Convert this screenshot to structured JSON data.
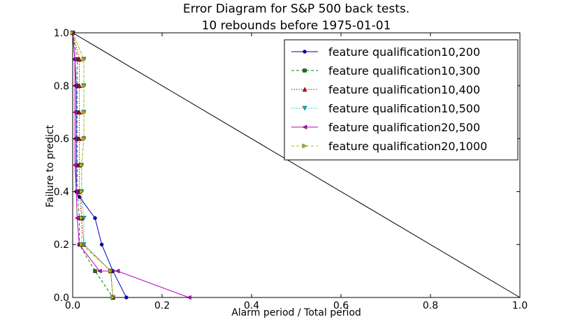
{
  "chart_data": {
    "type": "line",
    "title": "Error Diagram for S&P 500 back tests.",
    "subtitle": "10 rebounds before 1975-01-01",
    "xlabel": "Alarm period / Total period",
    "ylabel": "Failure to predict",
    "xlim": [
      0.0,
      1.0
    ],
    "ylim": [
      0.0,
      1.0
    ],
    "xticks": [
      "0.0",
      "0.2",
      "0.4",
      "0.6",
      "0.8",
      "1.0"
    ],
    "yticks": [
      "0.0",
      "0.2",
      "0.4",
      "0.6",
      "0.8",
      "1.0"
    ],
    "grid": false,
    "legend_position": "top-right",
    "reference_line": {
      "x": [
        0,
        1
      ],
      "y": [
        1,
        0
      ],
      "color": "#000000"
    },
    "series": [
      {
        "name": "feature qualification10,200",
        "color": "#0000bf",
        "dash": "solid",
        "marker": "circle",
        "x": [
          0.0,
          0.005,
          0.008,
          0.008,
          0.008,
          0.008,
          0.008,
          0.015,
          0.05,
          0.065,
          0.09,
          0.12
        ],
        "y": [
          1.0,
          0.9,
          0.8,
          0.7,
          0.6,
          0.5,
          0.4,
          0.38,
          0.3,
          0.2,
          0.1,
          0.0
        ]
      },
      {
        "name": "feature qualification10,300",
        "color": "#007f00",
        "dash": "dashed",
        "marker": "square",
        "x": [
          0.0,
          0.01,
          0.01,
          0.01,
          0.01,
          0.01,
          0.01,
          0.015,
          0.015,
          0.05,
          0.09
        ],
        "y": [
          1.0,
          0.9,
          0.8,
          0.7,
          0.6,
          0.5,
          0.4,
          0.3,
          0.2,
          0.1,
          0.0
        ]
      },
      {
        "name": "feature qualification10,400",
        "color": "#bf0000",
        "dash": "dotted",
        "marker": "triangle-up",
        "x": [
          0.0,
          0.015,
          0.015,
          0.015,
          0.015,
          0.015,
          0.015,
          0.02,
          0.025,
          0.085,
          0.09
        ],
        "y": [
          1.0,
          0.9,
          0.8,
          0.7,
          0.6,
          0.5,
          0.4,
          0.3,
          0.2,
          0.1,
          0.0
        ]
      },
      {
        "name": "feature qualification10,500",
        "color": "#00bfbf",
        "dash": "dotted",
        "marker": "triangle-down",
        "x": [
          0.0,
          0.025,
          0.025,
          0.025,
          0.025,
          0.02,
          0.02,
          0.025,
          0.025,
          0.085,
          0.09
        ],
        "y": [
          1.0,
          0.9,
          0.8,
          0.7,
          0.6,
          0.5,
          0.4,
          0.3,
          0.2,
          0.1,
          0.0
        ]
      },
      {
        "name": "feature qualification20,500",
        "color": "#bf00bf",
        "dash": "solid",
        "marker": "triangle-left",
        "x": [
          0.0,
          0.005,
          0.005,
          0.005,
          0.005,
          0.005,
          0.008,
          0.01,
          0.015,
          0.06,
          0.1,
          0.26
        ],
        "y": [
          1.0,
          0.9,
          0.8,
          0.7,
          0.6,
          0.5,
          0.4,
          0.3,
          0.2,
          0.1,
          0.1,
          0.0
        ]
      },
      {
        "name": "feature qualification20,1000",
        "color": "#bfbf00",
        "dash": "dashed",
        "marker": "triangle-right",
        "x": [
          0.0,
          0.025,
          0.025,
          0.025,
          0.025,
          0.02,
          0.02,
          0.02,
          0.02,
          0.085,
          0.09
        ],
        "y": [
          1.0,
          0.9,
          0.8,
          0.7,
          0.6,
          0.5,
          0.4,
          0.3,
          0.2,
          0.1,
          0.0
        ]
      }
    ]
  }
}
